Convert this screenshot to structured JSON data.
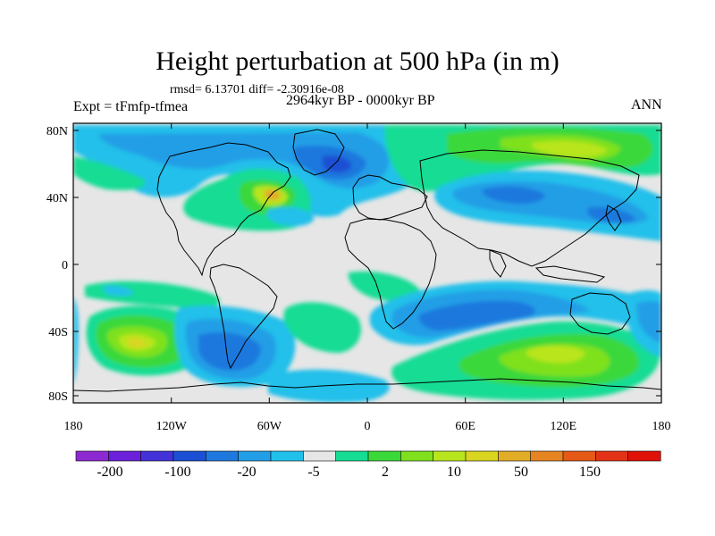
{
  "title": "Height perturbation at 500 hPa (in m)",
  "stats": "rmsd= 6.13701 diff= -2.30916e-08",
  "period": "2964kyr BP - 0000kyr BP",
  "experiment": "Expt = tFmfp-tfmea",
  "season": "ANN",
  "lat_ticks": [
    "80N",
    "40N",
    "0",
    "40S",
    "80S"
  ],
  "lon_ticks": [
    "180",
    "120W",
    "60W",
    "0",
    "60E",
    "120E",
    "180"
  ],
  "colorbar": {
    "labels": [
      "-200",
      "-100",
      "-20",
      "-5",
      "2",
      "10",
      "50",
      "150"
    ],
    "colors": [
      "#8d29d1",
      "#6a21d9",
      "#4332d8",
      "#1d4fd4",
      "#1f78dd",
      "#229ee6",
      "#21c0ea",
      "#e6e6e6",
      "#16dc94",
      "#3bd83a",
      "#7fe11e",
      "#b9e51e",
      "#d9d520",
      "#e2ac27",
      "#e68422",
      "#e55917",
      "#e33316",
      "#e01208"
    ]
  },
  "map": {
    "background_color": "#e6e6e6",
    "coast_color": "#000000"
  }
}
